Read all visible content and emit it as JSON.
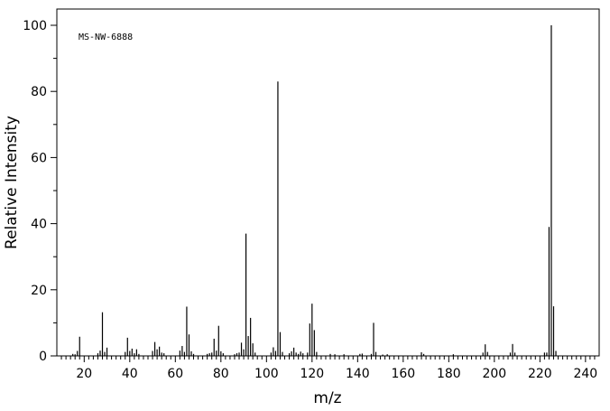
{
  "chart_data": {
    "type": "bar",
    "title": "MS-NW-6888",
    "xlabel": "m/z",
    "ylabel": "Relative Intensity",
    "xlim": [
      8,
      246
    ],
    "ylim": [
      0,
      100
    ],
    "x_ticks": [
      "20",
      "40",
      "60",
      "80",
      "100",
      "120",
      "140",
      "160",
      "180",
      "200",
      "220",
      "240"
    ],
    "y_ticks": [
      "0",
      "20",
      "40",
      "60",
      "80",
      "100"
    ],
    "x_minor_step": 2,
    "y_minor_step": 10,
    "grid": false,
    "peaks": [
      [
        15,
        0.6
      ],
      [
        16,
        0.5
      ],
      [
        17,
        1.5
      ],
      [
        18,
        5.8
      ],
      [
        26,
        0.8
      ],
      [
        27,
        1.6
      ],
      [
        28,
        13.2
      ],
      [
        29,
        1.2
      ],
      [
        30,
        2.5
      ],
      [
        38,
        1.2
      ],
      [
        39,
        5.5
      ],
      [
        40,
        1.5
      ],
      [
        41,
        2.2
      ],
      [
        42,
        0.8
      ],
      [
        43,
        2.0
      ],
      [
        44,
        0.6
      ],
      [
        50,
        1.5
      ],
      [
        51,
        4.2
      ],
      [
        52,
        2.0
      ],
      [
        53,
        2.8
      ],
      [
        54,
        1.0
      ],
      [
        55,
        0.8
      ],
      [
        62,
        1.6
      ],
      [
        63,
        3.0
      ],
      [
        64,
        1.2
      ],
      [
        65,
        14.9
      ],
      [
        66,
        6.5
      ],
      [
        67,
        1.4
      ],
      [
        68,
        0.6
      ],
      [
        74,
        0.6
      ],
      [
        75,
        0.8
      ],
      [
        76,
        1.0
      ],
      [
        77,
        5.2
      ],
      [
        78,
        1.6
      ],
      [
        79,
        9.1
      ],
      [
        80,
        1.4
      ],
      [
        81,
        0.8
      ],
      [
        86,
        0.5
      ],
      [
        87,
        0.8
      ],
      [
        88,
        1.0
      ],
      [
        89,
        4.0
      ],
      [
        90,
        2.0
      ],
      [
        91,
        37.0
      ],
      [
        92,
        6.0
      ],
      [
        93,
        11.5
      ],
      [
        94,
        3.8
      ],
      [
        95,
        1.0
      ],
      [
        102,
        1.0
      ],
      [
        103,
        2.6
      ],
      [
        104,
        1.5
      ],
      [
        105,
        83.0
      ],
      [
        106,
        7.2
      ],
      [
        107,
        1.2
      ],
      [
        110,
        0.8
      ],
      [
        111,
        1.4
      ],
      [
        112,
        2.5
      ],
      [
        113,
        1.0
      ],
      [
        114,
        0.6
      ],
      [
        115,
        1.3
      ],
      [
        116,
        0.8
      ],
      [
        118,
        1.0
      ],
      [
        119,
        9.8
      ],
      [
        120,
        15.8
      ],
      [
        121,
        7.8
      ],
      [
        122,
        1.2
      ],
      [
        128,
        0.6
      ],
      [
        130,
        0.5
      ],
      [
        134,
        0.5
      ],
      [
        141,
        0.6
      ],
      [
        142,
        0.7
      ],
      [
        146,
        0.6
      ],
      [
        147,
        10.0
      ],
      [
        148,
        1.2
      ],
      [
        151,
        0.4
      ],
      [
        153,
        0.5
      ],
      [
        168,
        1.1
      ],
      [
        169,
        0.6
      ],
      [
        182,
        0.5
      ],
      [
        195,
        1.0
      ],
      [
        196,
        3.5
      ],
      [
        197,
        1.2
      ],
      [
        207,
        1.0
      ],
      [
        208,
        3.6
      ],
      [
        209,
        1.0
      ],
      [
        222,
        1.0
      ],
      [
        223,
        1.0
      ],
      [
        224,
        39.0
      ],
      [
        225,
        100.0
      ],
      [
        226,
        15.0
      ],
      [
        227,
        1.5
      ]
    ]
  }
}
